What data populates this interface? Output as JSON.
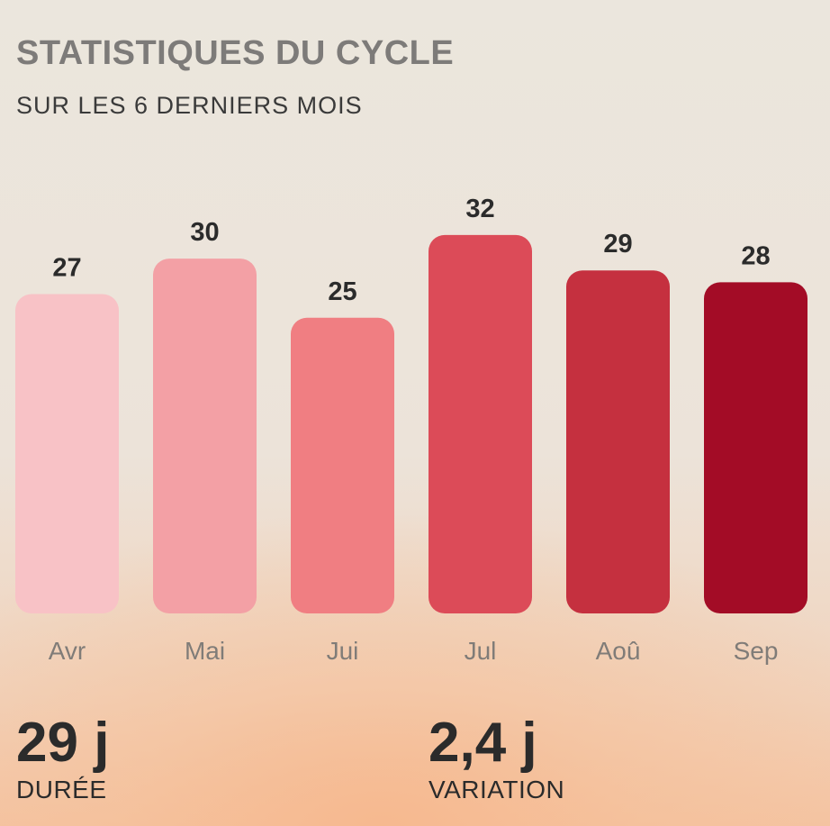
{
  "header": {
    "title": "STATISTIQUES DU CYCLE",
    "subtitle": "SUR LES 6 DERNIERS MOIS"
  },
  "chart_data": {
    "type": "bar",
    "categories": [
      "Avr",
      "Mai",
      "Jui",
      "Jul",
      "Aoû",
      "Sep"
    ],
    "values": [
      27,
      30,
      25,
      32,
      29,
      28
    ],
    "colors": [
      "#f8c2c6",
      "#f3a0a5",
      "#f07e82",
      "#dc4b58",
      "#c5303f",
      "#a30c26"
    ],
    "grid": false,
    "legend": "none"
  },
  "stats": {
    "duration": {
      "value": "29 j",
      "label": "DURÉE"
    },
    "variation": {
      "value": "2,4 j",
      "label": "VARIATION"
    }
  }
}
